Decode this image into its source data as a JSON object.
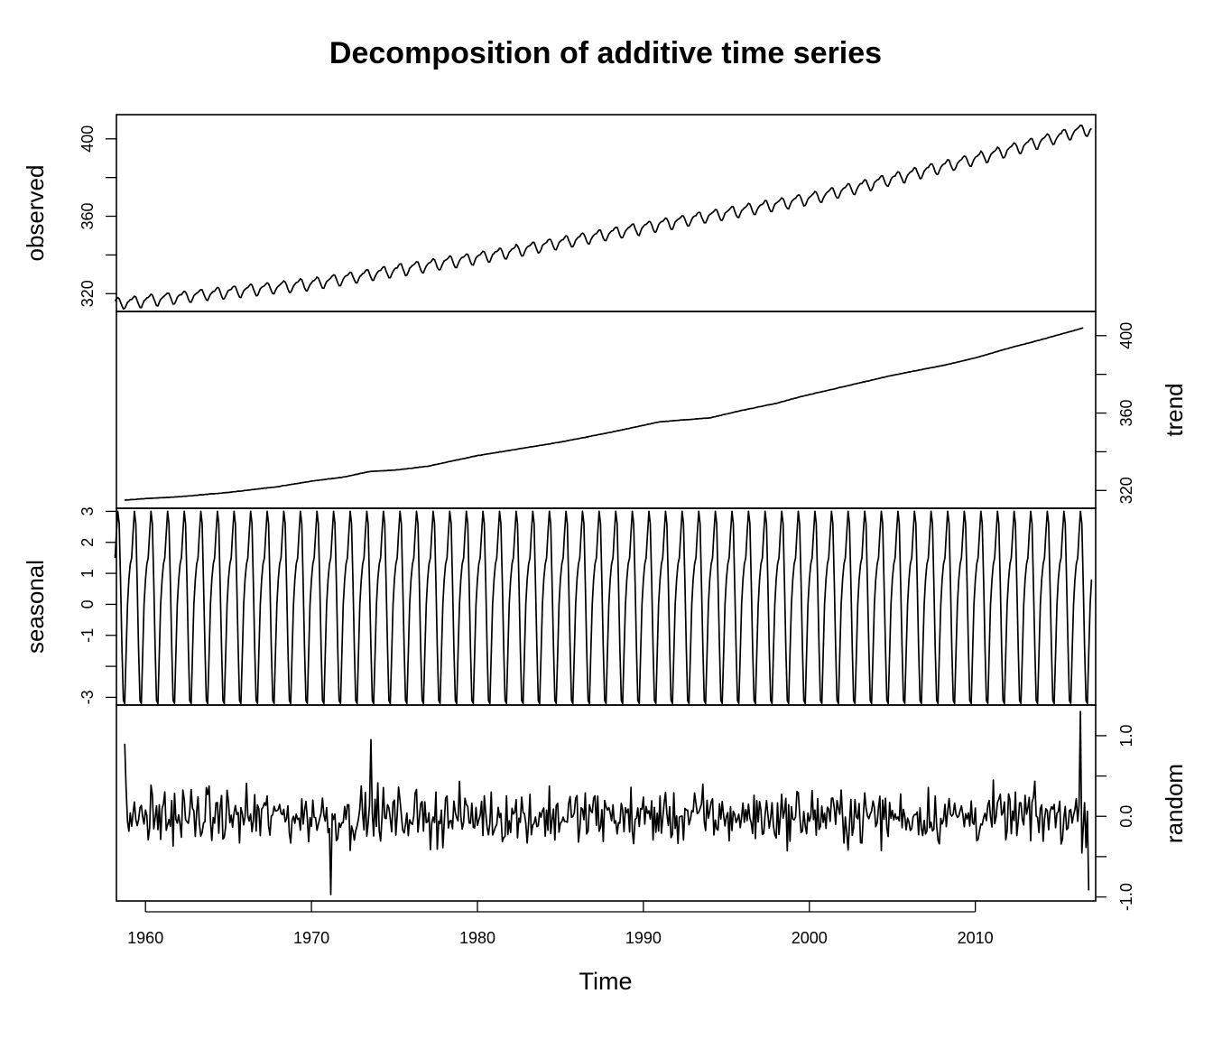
{
  "chart_data": {
    "type": "line",
    "title": "Decomposition of additive time series",
    "xlabel": "Time",
    "x_range": [
      1958.25,
      2017.25
    ],
    "frequency": 12,
    "xticks": [
      "1960",
      "1970",
      "1980",
      "1990",
      "2000",
      "2010"
    ],
    "grid": false,
    "legend": "none",
    "panels": [
      {
        "name": "observed",
        "ylabel": "observed",
        "axis_side": "left",
        "ylim": [
          310.8,
          412.5
        ],
        "yticks": [
          320,
          340,
          360,
          380,
          400
        ],
        "ytick_labels": [
          "320",
          "",
          "360",
          "",
          "400"
        ],
        "start_value": 315.7,
        "end_value": 407.0,
        "trend_knots": [
          [
            1958.25,
            314.8
          ],
          [
            1970,
            325.0
          ],
          [
            1980,
            338.5
          ],
          [
            1990,
            354.0
          ],
          [
            2000,
            369.0
          ],
          [
            2010,
            389.5
          ],
          [
            2016.5,
            404.5
          ]
        ],
        "seasonal_amplitude_approx": 3.2
      },
      {
        "name": "trend",
        "ylabel": "trend",
        "axis_side": "right",
        "ylim": [
          310.8,
          412.5
        ],
        "yticks": [
          320,
          340,
          360,
          380,
          400
        ],
        "ytick_labels": [
          "320",
          "",
          "360",
          "",
          "400"
        ],
        "knots": [
          [
            1958.75,
            315.0
          ],
          [
            1960,
            315.8
          ],
          [
            1962,
            316.7
          ],
          [
            1965,
            319.0
          ],
          [
            1968,
            322.0
          ],
          [
            1970,
            324.8
          ],
          [
            1972,
            327.0
          ],
          [
            1973.5,
            329.8
          ],
          [
            1975,
            330.5
          ],
          [
            1977,
            332.5
          ],
          [
            1980,
            338.0
          ],
          [
            1985,
            345.0
          ],
          [
            1988,
            350.0
          ],
          [
            1991,
            355.5
          ],
          [
            1994,
            357.5
          ],
          [
            1996,
            361.5
          ],
          [
            1998,
            365.0
          ],
          [
            1999.5,
            368.5
          ],
          [
            2002,
            373.5
          ],
          [
            2005,
            379.5
          ],
          [
            2008,
            384.5
          ],
          [
            2010,
            388.5
          ],
          [
            2012,
            393.5
          ],
          [
            2014,
            398.0
          ],
          [
            2016.5,
            404.0
          ]
        ]
      },
      {
        "name": "seasonal",
        "ylabel": "seasonal",
        "axis_side": "left",
        "ylim": [
          -3.25,
          3.1
        ],
        "yticks": [
          -3,
          -2,
          -1,
          0,
          1,
          2,
          3
        ],
        "ytick_labels": [
          "-3",
          "",
          "-1",
          "0",
          "1",
          "2",
          "3"
        ],
        "monthly_values": [
          1.5,
          2.3,
          3.0,
          2.6,
          0.7,
          -1.4,
          -3.1,
          -3.2,
          -1.6,
          0.0,
          0.8,
          1.3
        ],
        "period_years": 1
      },
      {
        "name": "random",
        "ylabel": "random",
        "axis_side": "right",
        "ylim": [
          -1.05,
          1.38
        ],
        "yticks": [
          -1.0,
          -0.5,
          0.0,
          0.5,
          1.0
        ],
        "ytick_labels": [
          "-1.0",
          "",
          "0.0",
          "",
          "1.0"
        ],
        "range": [
          -0.97,
          1.3
        ],
        "notable_points": [
          [
            1958.75,
            0.9
          ],
          [
            1971.2,
            -0.97
          ],
          [
            1973.6,
            0.95
          ],
          [
            2016.3,
            1.3
          ],
          [
            2016.8,
            -0.92
          ]
        ]
      }
    ]
  }
}
